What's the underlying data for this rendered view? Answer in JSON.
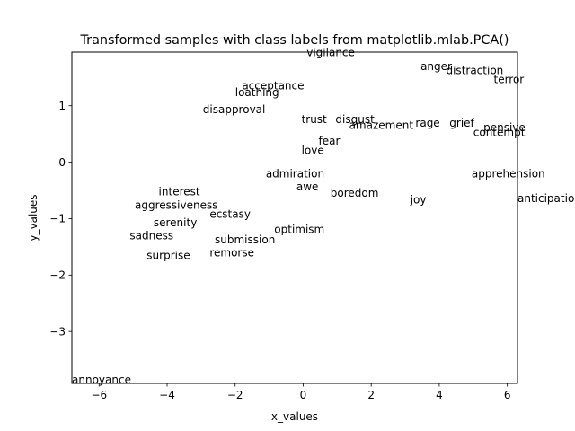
{
  "chart_data": {
    "type": "scatter",
    "title": "Transformed samples with class labels from matplotlib.mlab.PCA()",
    "xlabel": "x_values",
    "ylabel": "y_values",
    "xlim": [
      -6.8,
      6.3
    ],
    "ylim": [
      -3.92,
      1.95
    ],
    "xticks": [
      -6,
      -4,
      -2,
      0,
      2,
      4,
      6
    ],
    "yticks": [
      1,
      0,
      -1,
      -2,
      -3
    ],
    "xtick_labels": [
      "−6",
      "−4",
      "−2",
      "0",
      "2",
      "4",
      "6"
    ],
    "ytick_labels": [
      "1",
      "0",
      "−1",
      "−2",
      "−3"
    ],
    "grid": false,
    "points": [
      {
        "label": "vigilance",
        "x": 0.1,
        "y": 1.95
      },
      {
        "label": "anger",
        "x": 3.45,
        "y": 1.7
      },
      {
        "label": "distraction",
        "x": 4.2,
        "y": 1.63
      },
      {
        "label": "terror",
        "x": 5.6,
        "y": 1.47
      },
      {
        "label": "acceptance",
        "x": -1.8,
        "y": 1.36
      },
      {
        "label": "loathing",
        "x": -2.0,
        "y": 1.24
      },
      {
        "label": "disapproval",
        "x": -2.95,
        "y": 0.94
      },
      {
        "label": "trust",
        "x": -0.05,
        "y": 0.76
      },
      {
        "label": "disgust",
        "x": 0.95,
        "y": 0.76
      },
      {
        "label": "amazement",
        "x": 1.35,
        "y": 0.66
      },
      {
        "label": "rage",
        "x": 3.3,
        "y": 0.7
      },
      {
        "label": "grief",
        "x": 4.3,
        "y": 0.7
      },
      {
        "label": "pensive",
        "x": 5.3,
        "y": 0.62
      },
      {
        "label": "contempt",
        "x": 5.0,
        "y": 0.53
      },
      {
        "label": "fear",
        "x": 0.45,
        "y": 0.38
      },
      {
        "label": "love",
        "x": -0.05,
        "y": 0.21
      },
      {
        "label": "admiration",
        "x": -1.1,
        "y": -0.2
      },
      {
        "label": "apprehension",
        "x": 4.95,
        "y": -0.2
      },
      {
        "label": "awe",
        "x": -0.2,
        "y": -0.43
      },
      {
        "label": "interest",
        "x": -4.25,
        "y": -0.52
      },
      {
        "label": "boredom",
        "x": 0.8,
        "y": -0.54
      },
      {
        "label": "anticipation",
        "x": 6.3,
        "y": -0.64
      },
      {
        "label": "joy",
        "x": 3.15,
        "y": -0.66
      },
      {
        "label": "aggressiveness",
        "x": -4.95,
        "y": -0.76
      },
      {
        "label": "ecstasy",
        "x": -2.75,
        "y": -0.92
      },
      {
        "label": "serenity",
        "x": -4.4,
        "y": -1.07
      },
      {
        "label": "optimism",
        "x": -0.85,
        "y": -1.19
      },
      {
        "label": "sadness",
        "x": -5.1,
        "y": -1.3
      },
      {
        "label": "submission",
        "x": -2.6,
        "y": -1.37
      },
      {
        "label": "remorse",
        "x": -2.75,
        "y": -1.6
      },
      {
        "label": "surprise",
        "x": -4.6,
        "y": -1.65
      },
      {
        "label": "annoyance",
        "x": -6.8,
        "y": -3.85
      }
    ]
  }
}
